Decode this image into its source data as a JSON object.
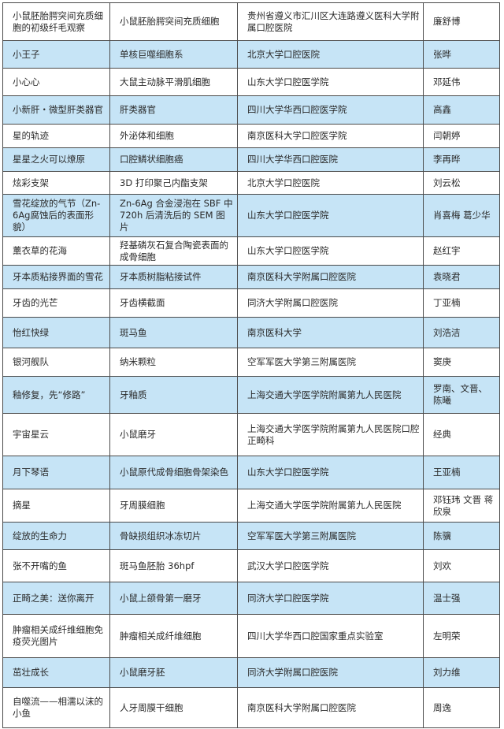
{
  "table": {
    "rows": [
      {
        "title": "小鼠胚胎腭突间充质细胞的初级纤毛观察",
        "subject": "小鼠胚胎腭突间充质细胞",
        "institution": "贵州省遵义市汇川区大连路遵义医科大学附属口腔医院",
        "author": "廉舒博"
      },
      {
        "title": "小王子",
        "subject": "单核巨噬细胞系",
        "institution": "北京大学口腔医院",
        "author": "张晔"
      },
      {
        "title": "小心心",
        "subject": "大鼠主动脉平滑肌细胞",
        "institution": "山东大学口腔医学院",
        "author": "邓延伟"
      },
      {
        "title": "小新肝・微型肝类器官",
        "subject": "肝类器官",
        "institution": "四川大学华西口腔医学院",
        "author": "高鑫"
      },
      {
        "title": "星的轨迹",
        "subject": "外泌体和细胞",
        "institution": "南京医科大学口腔医学院",
        "author": "闫朝婷"
      },
      {
        "title": "星星之火可以燎原",
        "subject": "口腔鳞状细胞癌",
        "institution": "四川大学华西口腔医院",
        "author": "李再晔"
      },
      {
        "title": "炫彩支架",
        "subject": "3D 打印聚己内酯支架",
        "institution": "北京大学口腔医院",
        "author": "刘云松"
      },
      {
        "title": "雪花绽放的气节（Zn-6Ag腐蚀后的表面形貌）",
        "subject": "Zn-6Ag 合金浸泡在 SBF 中 720h 后清洗后的 SEM 图片",
        "institution": "山东大学口腔医学院",
        "author": "肖喜梅 葛少华"
      },
      {
        "title": "薰衣草的花海",
        "subject": "羟基磷灰石复合陶瓷表面的成骨细胞",
        "institution": "山东大学口腔医学院",
        "author": "赵红宇"
      },
      {
        "title": "牙本质粘接界面的雪花",
        "subject": "牙本质树脂粘接试件",
        "institution": "南京医科大学附属口腔医院",
        "author": "袁晓君"
      },
      {
        "title": "牙齿的光芒",
        "subject": "牙齿横截面",
        "institution": "同济大学附属口腔医院",
        "author": "丁亚楠"
      },
      {
        "title": "怡红快绿",
        "subject": "斑马鱼",
        "institution": "南京医科大学",
        "author": "刘浩洁"
      },
      {
        "title": "银河舰队",
        "subject": "纳米颗粒",
        "institution": "空军军医大学第三附属医院",
        "author": "窦庚"
      },
      {
        "title": "釉修复，先“修路”",
        "subject": "牙釉质",
        "institution": "上海交通大学医学院附属第九人民医院",
        "author": "罗南、文晋、陈曦"
      },
      {
        "title": "宇宙星云",
        "subject": "小鼠磨牙",
        "institution": "上海交通大学医学院附属第九人民医院口腔正畸科",
        "author": "经典"
      },
      {
        "title": "月下琴语",
        "subject": "小鼠原代成骨细胞骨架染色",
        "institution": "山东大学口腔医学院",
        "author": "王亚楠"
      },
      {
        "title": "摘星",
        "subject": "牙周膜细胞",
        "institution": "上海交通大学医学院附属第九人民医院",
        "author": "邓钰玮 文晋 蒋欣泉"
      },
      {
        "title": "绽放的生命力",
        "subject": "骨缺损组织冰冻切片",
        "institution": "空军军医大学第三附属医院",
        "author": "陈骥"
      },
      {
        "title": "张不开嘴的鱼",
        "subject": "斑马鱼胚胎 36hpf",
        "institution": "武汉大学口腔医学院",
        "author": "刘欢"
      },
      {
        "title": "正畸之美：送你离开",
        "subject": "小鼠上颌骨第一磨牙",
        "institution": "同济大学口腔医学院",
        "author": "温士强"
      },
      {
        "title": "肿瘤相关成纤维细胞免疫荧光图片",
        "subject": "肿瘤相关成纤维细胞",
        "institution": "四川大学华西口腔国家重点实验室",
        "author": "左明荣"
      },
      {
        "title": "茁壮成长",
        "subject": "小鼠磨牙胚",
        "institution": "同济大学附属口腔医院",
        "author": "刘力维"
      },
      {
        "title": "自噬流——相濡以沫的小鱼",
        "subject": "人牙周膜干细胞",
        "institution": "南京医科大学附属口腔医院",
        "author": "周逸"
      }
    ]
  },
  "colors": {
    "row_highlight": "#c6e4f6",
    "border": "#4a4a4a",
    "text": "#2a2a2a"
  }
}
